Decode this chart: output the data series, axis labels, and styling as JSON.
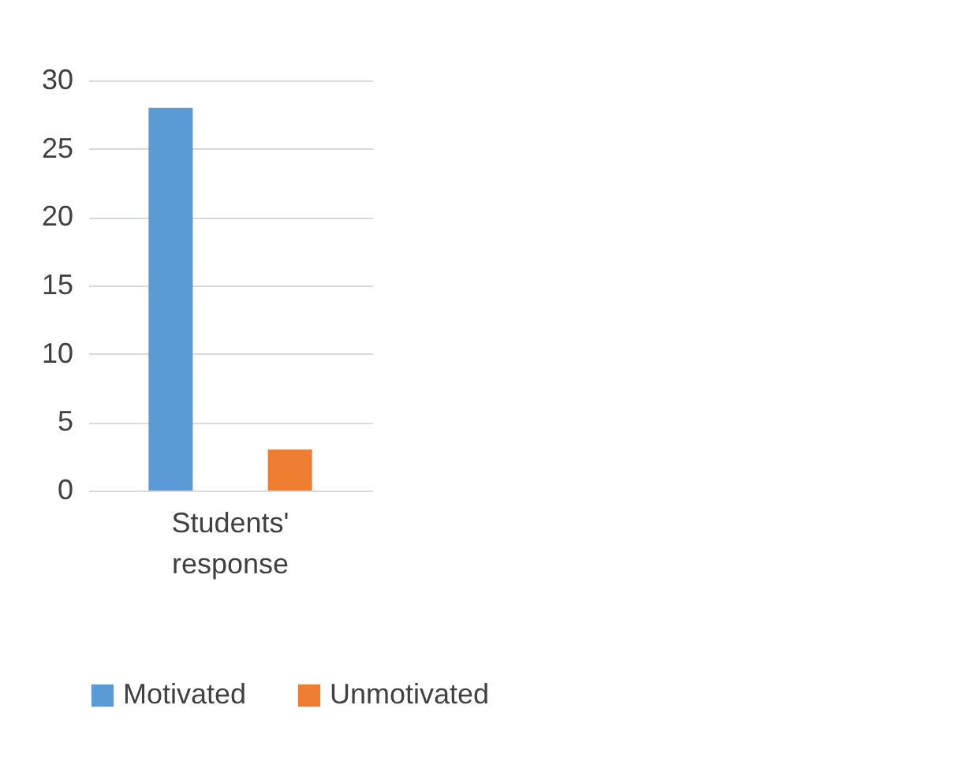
{
  "chart_data": {
    "type": "bar",
    "categories": [
      "Students' response"
    ],
    "series": [
      {
        "name": "Motivated",
        "color": "#5b9bd5",
        "values": [
          28
        ]
      },
      {
        "name": "Unmotivated",
        "color": "#ed7d31",
        "values": [
          3
        ]
      }
    ],
    "ylim": [
      0,
      30
    ],
    "yticks": [
      0,
      5,
      10,
      15,
      20,
      25,
      30
    ],
    "grid": "y",
    "legend": "bottom"
  }
}
